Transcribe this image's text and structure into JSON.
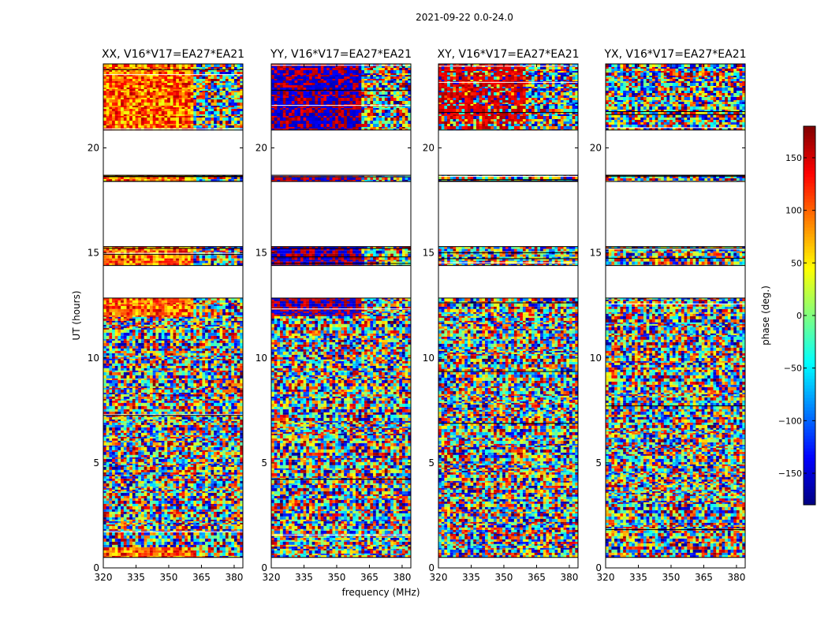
{
  "chart_data": {
    "type": "heatmap",
    "suptitle": "2021-09-22 0.0-24.0",
    "xlabel": "frequency (MHz)",
    "ylabel": "UT (hours)",
    "xlim": [
      320,
      384
    ],
    "ylim": [
      0,
      24
    ],
    "xticks": [
      320,
      335,
      350,
      365,
      380
    ],
    "yticks": [
      0,
      5,
      10,
      15,
      20
    ],
    "colorbar": {
      "label": "phase (deg.)",
      "range": [
        -180,
        180
      ],
      "ticks": [
        150,
        100,
        50,
        0,
        -50,
        -100,
        -150
      ],
      "tick_labels": [
        "150",
        "100",
        "50",
        "0",
        "−50",
        "−100",
        "−150"
      ],
      "colormap": "jet"
    },
    "observed_time_blocks_hours": [
      [
        0.5,
        12.85
      ],
      [
        14.4,
        15.3
      ],
      [
        18.4,
        18.7
      ],
      [
        20.85,
        24.0
      ]
    ],
    "panels": [
      {
        "title": "XX, V16*V17=EA27*EA21",
        "pattern": "early_bias_positive"
      },
      {
        "title": "YY, V16*V17=EA27*EA21",
        "pattern": "early_bias_extreme"
      },
      {
        "title": "XY, V16*V17=EA27*EA21",
        "pattern": "noise_with_red_late"
      },
      {
        "title": "YX, V16*V17=EA27*EA21",
        "pattern": "noise"
      }
    ]
  }
}
